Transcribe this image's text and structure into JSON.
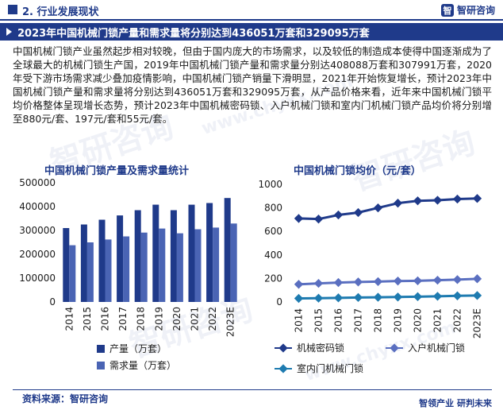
{
  "header": {
    "section": "2. 行业发展现状",
    "logo_mark": "智",
    "brand": "智研咨询"
  },
  "title": "2023年中国机械门锁产量和需求量将分别达到436051万套和329095万套",
  "paragraph": "中国机械门锁产业虽然起步相对较晚，但由于国内庞大的市场需求，以及较低的制造成本使得中国逐渐成为了全球最大的机械门锁生产国，2019年中国机械门锁产量和需求量分别达408088万套和307991万套，2020年受下游市场需求减少叠加疫情影响，中国机械门锁产销量下滑明显，2021年开始恢复增长，预计2023年中国机械门锁产量和需求量将分别达到436051万套和329095万套，从产品价格来看，近年来中国机械门锁平均价格整体呈现增长态势，预计2023年中国机械密码锁、入户机械门锁和室内门机械门锁产品均价将分别增至880元/套、197元/套和55元/套。",
  "watermark": {
    "cn": "智研咨询",
    "en": "www.chyxx.com"
  },
  "colors": {
    "brand": "#1f3a8a",
    "bar_production": "#1f3a8a",
    "bar_demand": "#4a64b4",
    "line_password": "#1f3a8a",
    "line_entry": "#5a6fc0",
    "line_indoor": "#1e7bb0"
  },
  "chart_data": [
    {
      "type": "bar",
      "title": "中国机械门锁产量及需求量统计",
      "categories": [
        "2014",
        "2015",
        "2016",
        "2017",
        "2018",
        "2019",
        "2020",
        "2021",
        "2022",
        "2023E"
      ],
      "ylim": [
        0,
        500000
      ],
      "yticks": [
        "500000",
        "400000",
        "300000",
        "200000",
        "100000",
        "0"
      ],
      "series": [
        {
          "name": "产量（万套）",
          "values": [
            310000,
            325000,
            345000,
            363000,
            385000,
            408088,
            385000,
            408000,
            415000,
            436051
          ]
        },
        {
          "name": "需求量（万套）",
          "values": [
            238000,
            250000,
            262000,
            275000,
            291000,
            307991,
            288000,
            305000,
            312000,
            329095
          ]
        }
      ],
      "legend": "bottom"
    },
    {
      "type": "line",
      "title": "中国机械门锁均价（元/套）",
      "categories": [
        "2014",
        "2015",
        "2016",
        "2017",
        "2018",
        "2019",
        "2020",
        "2021",
        "2022",
        "2023E"
      ],
      "ylim": [
        0,
        1000
      ],
      "yticks": [
        "1000",
        "800",
        "600",
        "400",
        "200",
        "0"
      ],
      "series": [
        {
          "name": "机械密码锁",
          "values": [
            710,
            705,
            740,
            760,
            800,
            840,
            860,
            865,
            875,
            880
          ]
        },
        {
          "name": "入户机械门锁",
          "values": [
            150,
            158,
            165,
            170,
            173,
            178,
            180,
            185,
            190,
            197
          ]
        },
        {
          "name": "室内门机械门锁",
          "values": [
            30,
            32,
            35,
            38,
            40,
            42,
            45,
            48,
            52,
            55
          ]
        }
      ],
      "legend": "bottom"
    }
  ],
  "footer": {
    "source": "资料来源：智研咨询",
    "slogan": "智领产业  研判未来"
  }
}
